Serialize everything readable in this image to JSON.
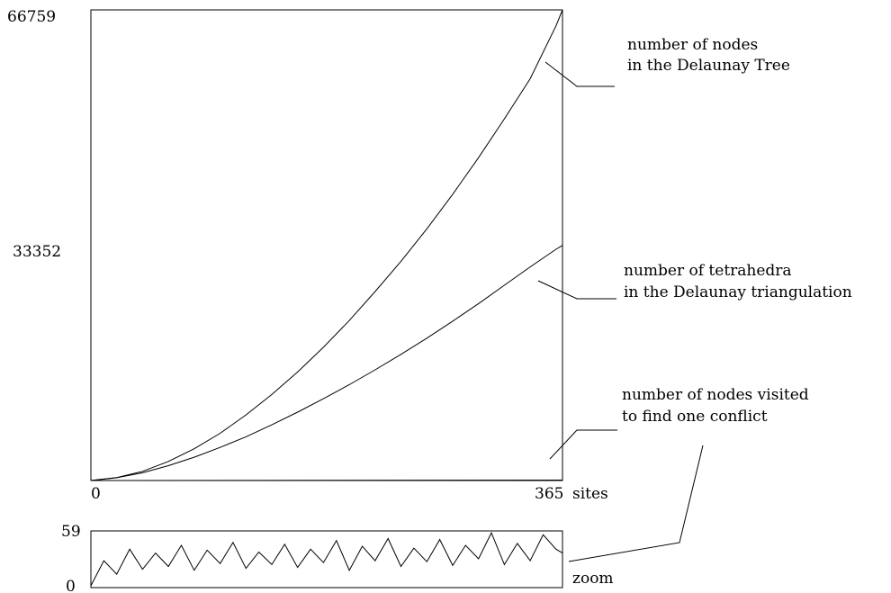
{
  "chart_data": [
    {
      "type": "line",
      "title": "",
      "xlabel": "sites",
      "ylabel": "",
      "xlim": [
        0,
        365
      ],
      "ylim": [
        0,
        66759
      ],
      "x_tick_labels": [
        "0",
        "365"
      ],
      "y_tick_labels": [
        "0",
        "33352",
        "66759"
      ],
      "grid": false,
      "series": [
        {
          "name": "number of nodes in the Delaunay Tree",
          "x": [
            0,
            20,
            40,
            60,
            80,
            100,
            120,
            140,
            160,
            180,
            200,
            220,
            240,
            260,
            280,
            300,
            320,
            340,
            360,
            365
          ],
          "y": [
            0,
            420,
            1300,
            2700,
            4500,
            6700,
            9300,
            12200,
            15400,
            18900,
            22700,
            26800,
            31100,
            35700,
            40600,
            45800,
            51300,
            57000,
            64500,
            66759
          ]
        },
        {
          "name": "number of tetrahedra in the Delaunay triangulation",
          "x": [
            0,
            20,
            40,
            60,
            80,
            100,
            120,
            140,
            160,
            180,
            200,
            220,
            240,
            260,
            280,
            300,
            320,
            340,
            360,
            365
          ],
          "y": [
            0,
            400,
            1100,
            2100,
            3300,
            4700,
            6200,
            7900,
            9700,
            11600,
            13600,
            15700,
            17900,
            20200,
            22600,
            25100,
            27700,
            30300,
            32800,
            33352
          ]
        },
        {
          "name": "number of nodes visited to find one conflict",
          "x": [
            0,
            365
          ],
          "y": [
            0,
            59
          ]
        }
      ],
      "annotations": [
        [
          "number of nodes",
          "in the Delaunay Tree"
        ],
        [
          "number of tetrahedra",
          "in the Delaunay triangulation"
        ],
        [
          "number of nodes visited",
          "to find one conflict"
        ]
      ]
    },
    {
      "type": "line",
      "title": "",
      "xlabel": "zoom",
      "xlim": [
        0,
        365
      ],
      "ylim": [
        0,
        59
      ],
      "y_tick_labels": [
        "0",
        "59"
      ],
      "series": [
        {
          "name": "number of nodes visited to find one conflict",
          "x": [
            0,
            10,
            20,
            30,
            40,
            50,
            60,
            70,
            80,
            90,
            100,
            110,
            120,
            130,
            140,
            150,
            160,
            170,
            180,
            190,
            200,
            210,
            220,
            230,
            240,
            250,
            260,
            270,
            280,
            290,
            300,
            310,
            320,
            330,
            340,
            350,
            360,
            365
          ],
          "y": [
            2,
            28,
            14,
            40,
            19,
            36,
            22,
            44,
            18,
            39,
            25,
            47,
            20,
            37,
            24,
            45,
            21,
            40,
            26,
            49,
            18,
            43,
            28,
            51,
            22,
            41,
            27,
            50,
            23,
            44,
            30,
            57,
            24,
            46,
            28,
            55,
            40,
            36
          ]
        }
      ]
    }
  ]
}
